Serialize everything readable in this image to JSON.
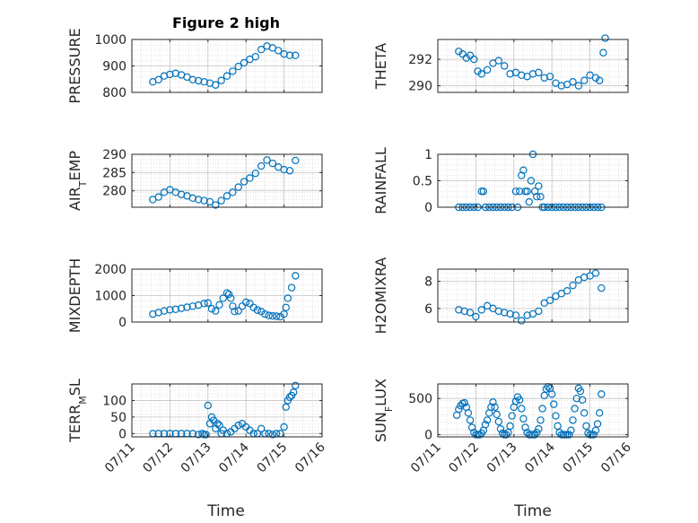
{
  "figure": {
    "title": "Figure 2 high",
    "xlabel": "Time"
  },
  "chart_data": [
    {
      "type": "scatter",
      "panel": "left-1",
      "ylabel": "PRESSURE",
      "ylim": [
        800,
        1000
      ],
      "yticks": [
        "800",
        "900",
        "1000"
      ],
      "yticks_v": [
        800,
        900,
        1000
      ],
      "xlim": [
        "07/11",
        "07/16"
      ],
      "show_xticks": false,
      "x": [
        11.55,
        11.7,
        11.85,
        12.0,
        12.15,
        12.3,
        12.45,
        12.6,
        12.75,
        12.9,
        13.05,
        13.2,
        13.35,
        13.5,
        13.65,
        13.8,
        13.95,
        14.1,
        14.25,
        14.4,
        14.55,
        14.7,
        14.85,
        15.0,
        15.15,
        15.3
      ],
      "y": [
        840,
        848,
        862,
        868,
        872,
        866,
        858,
        848,
        844,
        840,
        835,
        828,
        845,
        862,
        880,
        898,
        912,
        925,
        935,
        962,
        975,
        968,
        958,
        945,
        940,
        940
      ]
    },
    {
      "type": "scatter",
      "panel": "right-1",
      "ylabel": "THETA",
      "ylim": [
        289.5,
        293.5
      ],
      "yticks": [
        "290",
        "292"
      ],
      "yticks_v": [
        290,
        292
      ],
      "xlim": [
        "07/11",
        "07/16"
      ],
      "show_xticks": false,
      "x": [
        11.55,
        11.65,
        11.75,
        11.85,
        11.95,
        12.05,
        12.15,
        12.3,
        12.45,
        12.6,
        12.75,
        12.9,
        13.05,
        13.2,
        13.35,
        13.5,
        13.65,
        13.8,
        13.95,
        14.1,
        14.25,
        14.4,
        14.55,
        14.7,
        14.85,
        15.0,
        15.15,
        15.25,
        15.35,
        15.4
      ],
      "y": [
        292.6,
        292.4,
        292.1,
        292.3,
        292.0,
        291.1,
        290.9,
        291.2,
        291.7,
        291.9,
        291.5,
        290.9,
        291.0,
        290.8,
        290.7,
        290.9,
        291.0,
        290.6,
        290.7,
        290.2,
        290.0,
        290.1,
        290.3,
        290.0,
        290.4,
        290.8,
        290.6,
        290.4,
        292.5,
        293.6
      ]
    },
    {
      "type": "scatter",
      "panel": "left-2",
      "ylabel": "AIR_TEMP",
      "ylim": [
        275.5,
        290
      ],
      "yticks": [
        "280",
        "285",
        "290"
      ],
      "yticks_v": [
        280,
        285,
        290
      ],
      "xlim": [
        "07/11",
        "07/16"
      ],
      "show_xticks": false,
      "x": [
        11.55,
        11.7,
        11.85,
        12.0,
        12.15,
        12.3,
        12.45,
        12.6,
        12.75,
        12.9,
        13.05,
        13.2,
        13.35,
        13.5,
        13.65,
        13.8,
        13.95,
        14.1,
        14.25,
        14.4,
        14.55,
        14.7,
        14.85,
        15.0,
        15.15,
        15.3
      ],
      "y": [
        277.6,
        278.3,
        279.6,
        280.3,
        279.6,
        279.0,
        278.6,
        278.0,
        277.6,
        277.3,
        277.0,
        276.1,
        277.3,
        278.6,
        279.6,
        281.0,
        282.5,
        283.5,
        284.8,
        286.8,
        288.4,
        287.5,
        286.5,
        285.8,
        285.5,
        288.3
      ]
    },
    {
      "type": "scatter",
      "panel": "right-2",
      "ylabel": "RAINFALL",
      "ylim": [
        0,
        1
      ],
      "yticks": [
        "0",
        "0.5",
        "1"
      ],
      "yticks_v": [
        0,
        0.5,
        1
      ],
      "xlim": [
        "07/11",
        "07/16"
      ],
      "show_xticks": false,
      "x": [
        11.55,
        11.65,
        11.75,
        11.85,
        11.95,
        12.05,
        12.15,
        12.2,
        12.25,
        12.35,
        12.45,
        12.55,
        12.65,
        12.75,
        12.85,
        12.95,
        13.05,
        13.1,
        13.15,
        13.2,
        13.25,
        13.3,
        13.35,
        13.4,
        13.45,
        13.5,
        13.55,
        13.6,
        13.65,
        13.7,
        13.75,
        13.8,
        13.9,
        14.0,
        14.1,
        14.2,
        14.3,
        14.4,
        14.5,
        14.6,
        14.7,
        14.8,
        14.9,
        15.0,
        15.1,
        15.2,
        15.3
      ],
      "y": [
        0,
        0,
        0,
        0,
        0,
        0,
        0.3,
        0.3,
        0,
        0,
        0,
        0,
        0,
        0,
        0,
        0,
        0.3,
        0,
        0.3,
        0.6,
        0.7,
        0.3,
        0.3,
        0.1,
        0.5,
        1.0,
        0.3,
        0.2,
        0.4,
        0.2,
        0,
        0,
        0,
        0,
        0,
        0,
        0,
        0,
        0,
        0,
        0,
        0,
        0,
        0,
        0,
        0,
        0
      ]
    },
    {
      "type": "scatter",
      "panel": "left-3",
      "ylabel": "MIXDEPTH",
      "ylim": [
        0,
        2000
      ],
      "yticks": [
        "0",
        "1000",
        "2000"
      ],
      "yticks_v": [
        0,
        1000,
        2000
      ],
      "xlim": [
        "07/11",
        "07/16"
      ],
      "show_xticks": false,
      "x": [
        11.55,
        11.7,
        11.85,
        12.0,
        12.15,
        12.3,
        12.45,
        12.6,
        12.75,
        12.9,
        13.0,
        13.1,
        13.2,
        13.3,
        13.4,
        13.5,
        13.55,
        13.6,
        13.65,
        13.7,
        13.8,
        13.9,
        14.0,
        14.1,
        14.2,
        14.3,
        14.4,
        14.5,
        14.6,
        14.7,
        14.8,
        14.9,
        15.0,
        15.05,
        15.1,
        15.2,
        15.3
      ],
      "y": [
        300,
        360,
        420,
        460,
        480,
        520,
        560,
        600,
        640,
        700,
        720,
        500,
        420,
        650,
        900,
        1100,
        1050,
        900,
        600,
        400,
        420,
        600,
        750,
        700,
        550,
        450,
        400,
        300,
        250,
        230,
        220,
        200,
        300,
        550,
        900,
        1300,
        1750
      ]
    },
    {
      "type": "scatter",
      "panel": "right-3",
      "ylabel": "H2OMIXRA",
      "ylim": [
        5,
        8.9
      ],
      "yticks": [
        "6",
        "8"
      ],
      "yticks_v": [
        6,
        8
      ],
      "xlim": [
        "07/11",
        "07/16"
      ],
      "show_xticks": false,
      "x": [
        11.55,
        11.7,
        11.85,
        12.0,
        12.15,
        12.3,
        12.45,
        12.6,
        12.75,
        12.9,
        13.05,
        13.2,
        13.35,
        13.5,
        13.65,
        13.8,
        13.95,
        14.1,
        14.25,
        14.4,
        14.55,
        14.7,
        14.85,
        15.0,
        15.15,
        15.3
      ],
      "y": [
        5.9,
        5.8,
        5.7,
        5.4,
        5.9,
        6.2,
        6.0,
        5.8,
        5.7,
        5.6,
        5.5,
        5.1,
        5.5,
        5.6,
        5.8,
        6.4,
        6.6,
        6.9,
        7.1,
        7.3,
        7.7,
        8.1,
        8.3,
        8.4,
        8.6,
        7.5
      ]
    },
    {
      "type": "scatter",
      "panel": "left-4",
      "ylabel": "TERR_MSL",
      "ylim": [
        -10,
        150
      ],
      "yticks": [
        "0",
        "50",
        "100"
      ],
      "yticks_v": [
        0,
        50,
        100
      ],
      "xlim": [
        "07/11",
        "07/16"
      ],
      "show_xticks": true,
      "xticks": [
        "07/11",
        "07/12",
        "07/13",
        "07/14",
        "07/15",
        "07/16"
      ],
      "xticks_v": [
        11,
        12,
        13,
        14,
        15,
        16
      ],
      "x": [
        11.55,
        11.7,
        11.85,
        12.0,
        12.15,
        12.3,
        12.45,
        12.6,
        12.75,
        12.85,
        12.9,
        12.95,
        13.0,
        13.05,
        13.1,
        13.15,
        13.2,
        13.25,
        13.3,
        13.35,
        13.4,
        13.5,
        13.6,
        13.7,
        13.8,
        13.9,
        14.0,
        14.1,
        14.2,
        14.3,
        14.4,
        14.5,
        14.6,
        14.7,
        14.8,
        14.9,
        15.0,
        15.05,
        15.1,
        15.15,
        15.2,
        15.25,
        15.3
      ],
      "y": [
        0,
        0,
        0,
        0,
        0,
        0,
        0,
        0,
        -3,
        0,
        -3,
        -3,
        85,
        30,
        50,
        40,
        15,
        30,
        25,
        0,
        10,
        0,
        5,
        15,
        25,
        30,
        20,
        10,
        0,
        0,
        15,
        0,
        0,
        -3,
        0,
        0,
        20,
        80,
        100,
        110,
        115,
        125,
        145
      ]
    },
    {
      "type": "scatter",
      "panel": "right-4",
      "ylabel": "SUN_FLUX",
      "ylim": [
        -30,
        700
      ],
      "yticks": [
        "0",
        "500"
      ],
      "yticks_v": [
        0,
        500
      ],
      "xlim": [
        "07/11",
        "07/16"
      ],
      "show_xticks": true,
      "xticks": [
        "07/11",
        "07/12",
        "07/13",
        "07/14",
        "07/15",
        "07/16"
      ],
      "xticks_v": [
        11,
        12,
        13,
        14,
        15,
        16
      ],
      "x": [
        11.5,
        11.55,
        11.6,
        11.65,
        11.7,
        11.75,
        11.8,
        11.85,
        11.9,
        11.95,
        12.0,
        12.05,
        12.1,
        12.15,
        12.2,
        12.25,
        12.3,
        12.35,
        12.4,
        12.45,
        12.5,
        12.55,
        12.6,
        12.65,
        12.7,
        12.75,
        12.8,
        12.85,
        12.9,
        12.95,
        13.0,
        13.05,
        13.1,
        13.15,
        13.2,
        13.25,
        13.3,
        13.35,
        13.4,
        13.45,
        13.5,
        13.55,
        13.6,
        13.65,
        13.7,
        13.75,
        13.8,
        13.85,
        13.9,
        13.95,
        14.0,
        14.05,
        14.1,
        14.15,
        14.2,
        14.25,
        14.3,
        14.35,
        14.4,
        14.45,
        14.5,
        14.55,
        14.6,
        14.65,
        14.7,
        14.75,
        14.8,
        14.85,
        14.9,
        14.95,
        15.0,
        15.05,
        15.1,
        15.15,
        15.2,
        15.25,
        15.3
      ],
      "y": [
        270,
        350,
        400,
        430,
        440,
        380,
        300,
        200,
        100,
        30,
        0,
        0,
        0,
        20,
        60,
        140,
        200,
        300,
        380,
        450,
        380,
        280,
        180,
        80,
        20,
        0,
        0,
        30,
        120,
        260,
        380,
        460,
        520,
        480,
        360,
        220,
        100,
        30,
        0,
        0,
        0,
        0,
        30,
        80,
        200,
        360,
        540,
        630,
        660,
        640,
        560,
        420,
        260,
        120,
        30,
        0,
        0,
        0,
        0,
        0,
        60,
        200,
        360,
        500,
        640,
        600,
        480,
        300,
        120,
        20,
        0,
        0,
        0,
        60,
        150,
        300,
        560
      ]
    }
  ]
}
